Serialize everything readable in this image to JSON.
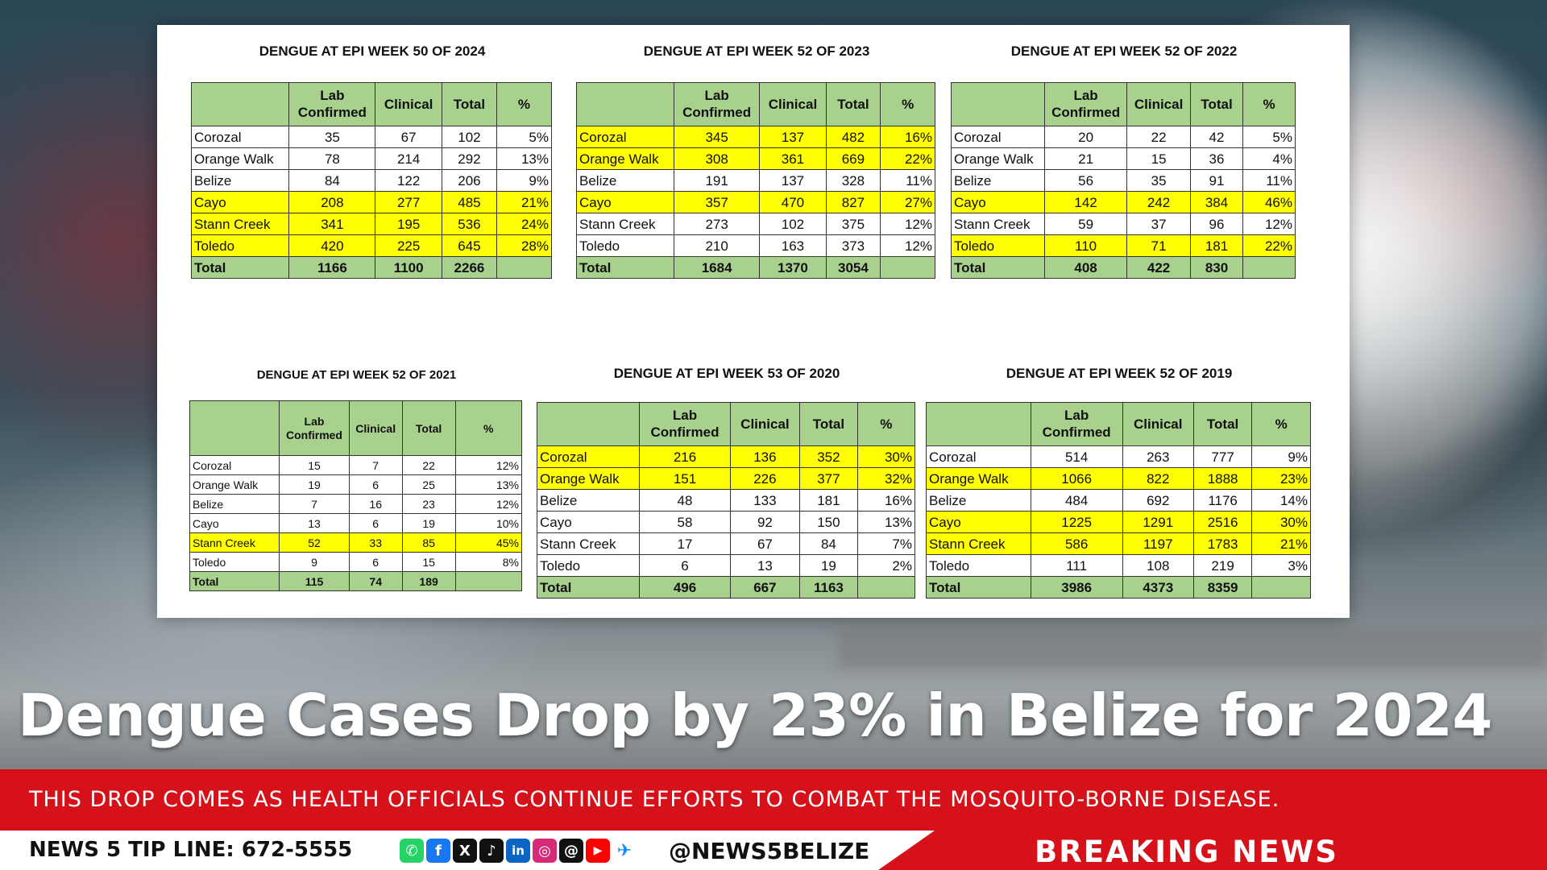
{
  "tables": [
    {
      "title": "DENGUE AT EPI WEEK 50 OF 2024",
      "headers": [
        "",
        "Lab Confirmed",
        "Clinical",
        "Total",
        "%"
      ],
      "rows": [
        {
          "district": "Corozal",
          "lab": "35",
          "clinical": "67",
          "total": "102",
          "pct": "5%",
          "highlight": false
        },
        {
          "district": "Orange Walk",
          "lab": "78",
          "clinical": "214",
          "total": "292",
          "pct": "13%",
          "highlight": false
        },
        {
          "district": "Belize",
          "lab": "84",
          "clinical": "122",
          "total": "206",
          "pct": "9%",
          "highlight": false
        },
        {
          "district": "Cayo",
          "lab": "208",
          "clinical": "277",
          "total": "485",
          "pct": "21%",
          "highlight": true
        },
        {
          "district": "Stann Creek",
          "lab": "341",
          "clinical": "195",
          "total": "536",
          "pct": "24%",
          "highlight": true
        },
        {
          "district": "Toledo",
          "lab": "420",
          "clinical": "225",
          "total": "645",
          "pct": "28%",
          "highlight": true
        }
      ],
      "total": {
        "label": "Total",
        "lab": "1166",
        "clinical": "1100",
        "total": "2266"
      }
    },
    {
      "title": "DENGUE AT EPI WEEK 52 OF 2023",
      "headers": [
        "",
        "Lab Confirmed",
        "Clinical",
        "Total",
        "%"
      ],
      "rows": [
        {
          "district": "Corozal",
          "lab": "345",
          "clinical": "137",
          "total": "482",
          "pct": "16%",
          "highlight": true
        },
        {
          "district": "Orange Walk",
          "lab": "308",
          "clinical": "361",
          "total": "669",
          "pct": "22%",
          "highlight": true
        },
        {
          "district": "Belize",
          "lab": "191",
          "clinical": "137",
          "total": "328",
          "pct": "11%",
          "highlight": false
        },
        {
          "district": "Cayo",
          "lab": "357",
          "clinical": "470",
          "total": "827",
          "pct": "27%",
          "highlight": true
        },
        {
          "district": "Stann Creek",
          "lab": "273",
          "clinical": "102",
          "total": "375",
          "pct": "12%",
          "highlight": false
        },
        {
          "district": "Toledo",
          "lab": "210",
          "clinical": "163",
          "total": "373",
          "pct": "12%",
          "highlight": false
        }
      ],
      "total": {
        "label": "Total",
        "lab": "1684",
        "clinical": "1370",
        "total": "3054"
      }
    },
    {
      "title": "DENGUE AT EPI WEEK 52 OF 2022",
      "headers": [
        "",
        "Lab Confirmed",
        "Clinical",
        "Total",
        "%"
      ],
      "rows": [
        {
          "district": "Corozal",
          "lab": "20",
          "clinical": "22",
          "total": "42",
          "pct": "5%",
          "highlight": false
        },
        {
          "district": "Orange Walk",
          "lab": "21",
          "clinical": "15",
          "total": "36",
          "pct": "4%",
          "highlight": false
        },
        {
          "district": "Belize",
          "lab": "56",
          "clinical": "35",
          "total": "91",
          "pct": "11%",
          "highlight": false
        },
        {
          "district": "Cayo",
          "lab": "142",
          "clinical": "242",
          "total": "384",
          "pct": "46%",
          "highlight": true
        },
        {
          "district": "Stann Creek",
          "lab": "59",
          "clinical": "37",
          "total": "96",
          "pct": "12%",
          "highlight": false
        },
        {
          "district": "Toledo",
          "lab": "110",
          "clinical": "71",
          "total": "181",
          "pct": "22%",
          "highlight": true
        }
      ],
      "total": {
        "label": "Total",
        "lab": "408",
        "clinical": "422",
        "total": "830"
      }
    },
    {
      "title": "DENGUE AT EPI WEEK 52 OF 2021",
      "headers": [
        "",
        "Lab Confirmed",
        "Clinical",
        "Total",
        "%"
      ],
      "rows": [
        {
          "district": "Corozal",
          "lab": "15",
          "clinical": "7",
          "total": "22",
          "pct": "12%",
          "highlight": false
        },
        {
          "district": "Orange Walk",
          "lab": "19",
          "clinical": "6",
          "total": "25",
          "pct": "13%",
          "highlight": false
        },
        {
          "district": "Belize",
          "lab": "7",
          "clinical": "16",
          "total": "23",
          "pct": "12%",
          "highlight": false
        },
        {
          "district": "Cayo",
          "lab": "13",
          "clinical": "6",
          "total": "19",
          "pct": "10%",
          "highlight": false
        },
        {
          "district": "Stann Creek",
          "lab": "52",
          "clinical": "33",
          "total": "85",
          "pct": "45%",
          "highlight": true
        },
        {
          "district": "Toledo",
          "lab": "9",
          "clinical": "6",
          "total": "15",
          "pct": "8%",
          "highlight": false
        }
      ],
      "total": {
        "label": "Total",
        "lab": "115",
        "clinical": "74",
        "total": "189"
      }
    },
    {
      "title": "DENGUE AT EPI WEEK 53 OF 2020",
      "headers": [
        "",
        "Lab Confirmed",
        "Clinical",
        "Total",
        "%"
      ],
      "rows": [
        {
          "district": "Corozal",
          "lab": "216",
          "clinical": "136",
          "total": "352",
          "pct": "30%",
          "highlight": true
        },
        {
          "district": "Orange Walk",
          "lab": "151",
          "clinical": "226",
          "total": "377",
          "pct": "32%",
          "highlight": true
        },
        {
          "district": "Belize",
          "lab": "48",
          "clinical": "133",
          "total": "181",
          "pct": "16%",
          "highlight": false
        },
        {
          "district": "Cayo",
          "lab": "58",
          "clinical": "92",
          "total": "150",
          "pct": "13%",
          "highlight": false
        },
        {
          "district": "Stann Creek",
          "lab": "17",
          "clinical": "67",
          "total": "84",
          "pct": "7%",
          "highlight": false
        },
        {
          "district": "Toledo",
          "lab": "6",
          "clinical": "13",
          "total": "19",
          "pct": "2%",
          "highlight": false
        }
      ],
      "total": {
        "label": "Total",
        "lab": "496",
        "clinical": "667",
        "total": "1163"
      }
    },
    {
      "title": "DENGUE AT EPI WEEK 52 OF 2019",
      "headers": [
        "",
        "Lab Confirmed",
        "Clinical",
        "Total",
        "%"
      ],
      "rows": [
        {
          "district": "Corozal",
          "lab": "514",
          "clinical": "263",
          "total": "777",
          "pct": "9%",
          "highlight": false
        },
        {
          "district": "Orange Walk",
          "lab": "1066",
          "clinical": "822",
          "total": "1888",
          "pct": "23%",
          "highlight": true
        },
        {
          "district": "Belize",
          "lab": "484",
          "clinical": "692",
          "total": "1176",
          "pct": "14%",
          "highlight": false
        },
        {
          "district": "Cayo",
          "lab": "1225",
          "clinical": "1291",
          "total": "2516",
          "pct": "30%",
          "highlight": true
        },
        {
          "district": "Stann Creek",
          "lab": "586",
          "clinical": "1197",
          "total": "1783",
          "pct": "21%",
          "highlight": true
        },
        {
          "district": "Toledo",
          "lab": "111",
          "clinical": "108",
          "total": "219",
          "pct": "3%",
          "highlight": false
        }
      ],
      "total": {
        "label": "Total",
        "lab": "3986",
        "clinical": "4373",
        "total": "8359"
      }
    }
  ],
  "headline": "Dengue Cases Drop by 23% in Belize for 2024",
  "subheadline": "THIS DROP COMES AS HEALTH OFFICIALS CONTINUE EFFORTS TO COMBAT THE MOSQUITO-BORNE DISEASE.",
  "tipline": "NEWS 5 TIP LINE: 672-5555",
  "social_icons": [
    "whatsapp-icon",
    "facebook-icon",
    "x-icon",
    "tiktok-icon",
    "linkedin-icon",
    "instagram-icon",
    "threads-icon",
    "youtube-icon",
    "bluesky-icon"
  ],
  "handle": "@NEWS5BELIZE",
  "breaking": "BREAKING NEWS",
  "colors": {
    "header_green": "#a9d18e",
    "highlight_yellow": "#ffff00",
    "banner_red": "#d7111a"
  }
}
